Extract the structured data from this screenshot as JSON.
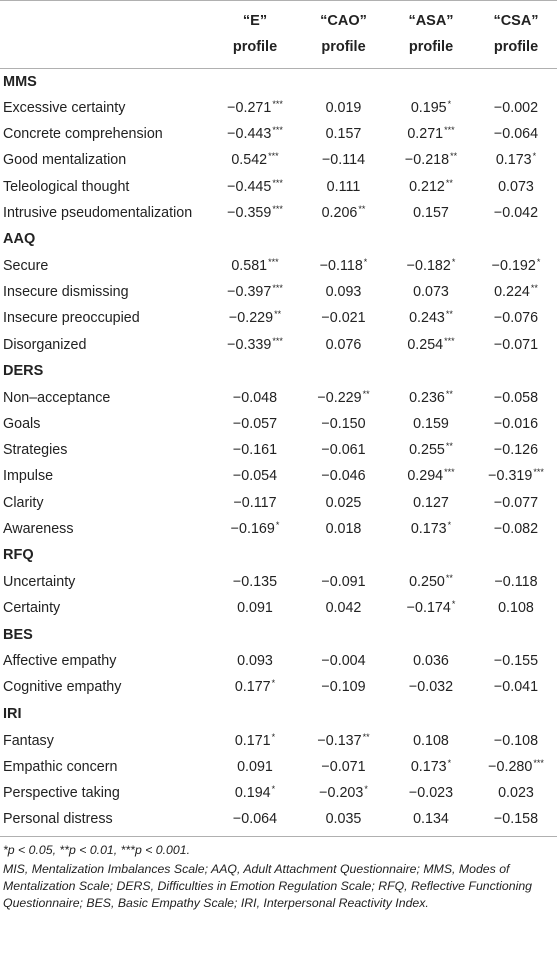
{
  "headers": [
    {
      "line1": "",
      "line2": ""
    },
    {
      "line1": "“E”",
      "line2": "profile"
    },
    {
      "line1": "“CAO”",
      "line2": "profile"
    },
    {
      "line1": "“ASA”",
      "line2": "profile"
    },
    {
      "line1": "“CSA”",
      "line2": "profile"
    }
  ],
  "sections": [
    {
      "title": "MMS",
      "rows": [
        {
          "label": "Excessive certainty",
          "cells": [
            {
              "v": "−0.271",
              "s": "***"
            },
            {
              "v": "0.019",
              "s": ""
            },
            {
              "v": "0.195",
              "s": "*"
            },
            {
              "v": "−0.002",
              "s": ""
            }
          ]
        },
        {
          "label": "Concrete comprehension",
          "cells": [
            {
              "v": "−0.443",
              "s": "***"
            },
            {
              "v": "0.157",
              "s": ""
            },
            {
              "v": "0.271",
              "s": "***"
            },
            {
              "v": "−0.064",
              "s": ""
            }
          ]
        },
        {
          "label": "Good mentalization",
          "cells": [
            {
              "v": "0.542",
              "s": "***"
            },
            {
              "v": "−0.114",
              "s": ""
            },
            {
              "v": "−0.218",
              "s": "**"
            },
            {
              "v": "0.173",
              "s": "*"
            }
          ]
        },
        {
          "label": "Teleological thought",
          "cells": [
            {
              "v": "−0.445",
              "s": "***"
            },
            {
              "v": "0.111",
              "s": ""
            },
            {
              "v": "0.212",
              "s": "**"
            },
            {
              "v": "0.073",
              "s": ""
            }
          ]
        },
        {
          "label": "Intrusive pseudomentalization",
          "cells": [
            {
              "v": "−0.359",
              "s": "***"
            },
            {
              "v": "0.206",
              "s": "**"
            },
            {
              "v": "0.157",
              "s": ""
            },
            {
              "v": "−0.042",
              "s": ""
            }
          ]
        }
      ]
    },
    {
      "title": "AAQ",
      "rows": [
        {
          "label": "Secure",
          "cells": [
            {
              "v": "0.581",
              "s": "***"
            },
            {
              "v": "−0.118",
              "s": "*"
            },
            {
              "v": "−0.182",
              "s": "*"
            },
            {
              "v": "−0.192",
              "s": "*"
            }
          ]
        },
        {
          "label": "Insecure dismissing",
          "cells": [
            {
              "v": "−0.397",
              "s": "***"
            },
            {
              "v": "0.093",
              "s": ""
            },
            {
              "v": "0.073",
              "s": ""
            },
            {
              "v": "0.224",
              "s": "**"
            }
          ]
        },
        {
          "label": "Insecure preoccupied",
          "cells": [
            {
              "v": "−0.229",
              "s": "**"
            },
            {
              "v": "−0.021",
              "s": ""
            },
            {
              "v": "0.243",
              "s": "**"
            },
            {
              "v": "−0.076",
              "s": ""
            }
          ]
        },
        {
          "label": "Disorganized",
          "cells": [
            {
              "v": "−0.339",
              "s": "***"
            },
            {
              "v": "0.076",
              "s": ""
            },
            {
              "v": "0.254",
              "s": "***"
            },
            {
              "v": "−0.071",
              "s": ""
            }
          ]
        }
      ]
    },
    {
      "title": "DERS",
      "rows": [
        {
          "label": "Non–acceptance",
          "cells": [
            {
              "v": "−0.048",
              "s": ""
            },
            {
              "v": "−0.229",
              "s": "**"
            },
            {
              "v": "0.236",
              "s": "**"
            },
            {
              "v": "−0.058",
              "s": ""
            }
          ]
        },
        {
          "label": "Goals",
          "cells": [
            {
              "v": "−0.057",
              "s": ""
            },
            {
              "v": "−0.150",
              "s": ""
            },
            {
              "v": "0.159",
              "s": ""
            },
            {
              "v": "−0.016",
              "s": ""
            }
          ]
        },
        {
          "label": "Strategies",
          "cells": [
            {
              "v": "−0.161",
              "s": ""
            },
            {
              "v": "−0.061",
              "s": ""
            },
            {
              "v": "0.255",
              "s": "**"
            },
            {
              "v": "−0.126",
              "s": ""
            }
          ]
        },
        {
          "label": "Impulse",
          "cells": [
            {
              "v": "−0.054",
              "s": ""
            },
            {
              "v": "−0.046",
              "s": ""
            },
            {
              "v": "0.294",
              "s": "***"
            },
            {
              "v": "−0.319",
              "s": "***"
            }
          ]
        },
        {
          "label": "Clarity",
          "cells": [
            {
              "v": "−0.117",
              "s": ""
            },
            {
              "v": "0.025",
              "s": ""
            },
            {
              "v": "0.127",
              "s": ""
            },
            {
              "v": "−0.077",
              "s": ""
            }
          ]
        },
        {
          "label": "Awareness",
          "cells": [
            {
              "v": "−0.169",
              "s": "*"
            },
            {
              "v": "0.018",
              "s": ""
            },
            {
              "v": "0.173",
              "s": "*"
            },
            {
              "v": "−0.082",
              "s": ""
            }
          ]
        }
      ]
    },
    {
      "title": "RFQ",
      "rows": [
        {
          "label": "Uncertainty",
          "cells": [
            {
              "v": "−0.135",
              "s": ""
            },
            {
              "v": "−0.091",
              "s": ""
            },
            {
              "v": "0.250",
              "s": "**"
            },
            {
              "v": "−0.118",
              "s": ""
            }
          ]
        },
        {
          "label": "Certainty",
          "cells": [
            {
              "v": "0.091",
              "s": ""
            },
            {
              "v": "0.042",
              "s": ""
            },
            {
              "v": "−0.174",
              "s": "*"
            },
            {
              "v": "0.108",
              "s": ""
            }
          ]
        }
      ]
    },
    {
      "title": "BES",
      "rows": [
        {
          "label": "Affective empathy",
          "cells": [
            {
              "v": "0.093",
              "s": ""
            },
            {
              "v": "−0.004",
              "s": ""
            },
            {
              "v": "0.036",
              "s": ""
            },
            {
              "v": "−0.155",
              "s": ""
            }
          ]
        },
        {
          "label": "Cognitive empathy",
          "cells": [
            {
              "v": "0.177",
              "s": "*"
            },
            {
              "v": "−0.109",
              "s": ""
            },
            {
              "v": "−0.032",
              "s": ""
            },
            {
              "v": "−0.041",
              "s": ""
            }
          ]
        }
      ]
    },
    {
      "title": "IRI",
      "rows": [
        {
          "label": "Fantasy",
          "cells": [
            {
              "v": "0.171",
              "s": "*"
            },
            {
              "v": "−0.137",
              "s": "**"
            },
            {
              "v": "0.108",
              "s": ""
            },
            {
              "v": "−0.108",
              "s": ""
            }
          ]
        },
        {
          "label": "Empathic concern",
          "cells": [
            {
              "v": "0.091",
              "s": ""
            },
            {
              "v": "−0.071",
              "s": ""
            },
            {
              "v": "0.173",
              "s": "*"
            },
            {
              "v": "−0.280",
              "s": "***"
            }
          ]
        },
        {
          "label": "Perspective taking",
          "cells": [
            {
              "v": "0.194",
              "s": "*"
            },
            {
              "v": "−0.203",
              "s": "*"
            },
            {
              "v": "−0.023",
              "s": ""
            },
            {
              "v": "0.023",
              "s": ""
            }
          ]
        },
        {
          "label": "Personal distress",
          "cells": [
            {
              "v": "−0.064",
              "s": ""
            },
            {
              "v": "0.035",
              "s": ""
            },
            {
              "v": "0.134",
              "s": ""
            },
            {
              "v": "−0.158",
              "s": ""
            }
          ]
        }
      ]
    }
  ],
  "footnotes": {
    "significance": "*p < 0.05, **p < 0.01, ***p < 0.001.",
    "abbreviations": "MIS, Mentalization Imbalances Scale; AAQ, Adult Attachment Questionnaire; MMS, Modes of Mentalization Scale; DERS, Difficulties in Emotion Regulation Scale; RFQ, Reflective Functioning Questionnaire; BES, Basic Empathy Scale; IRI, Interpersonal Reactivity Index."
  },
  "colors": {
    "rule": "#b0b0b0",
    "text": "#222222",
    "background": "#ffffff"
  }
}
